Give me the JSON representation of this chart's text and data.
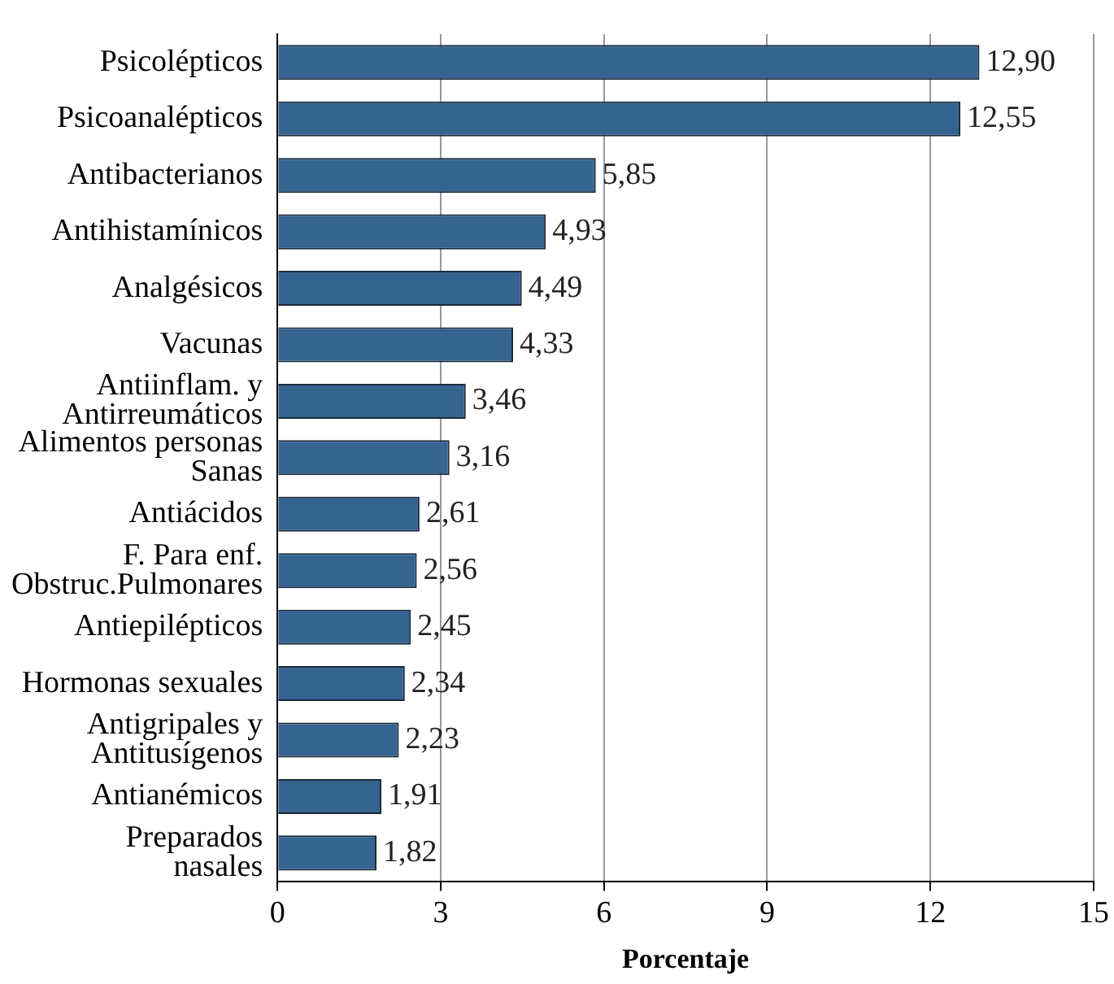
{
  "chart_data": {
    "type": "bar",
    "orientation": "horizontal",
    "xlabel": "Porcentaje",
    "categories": [
      "Psicolépticos",
      "Psicoanalépticos",
      "Antibacterianos",
      "Antihistamínicos",
      "Analgésicos",
      "Vacunas",
      "Antiinflam. y\nAntirreumáticos",
      "Alimentos personas\nSanas",
      "Antiácidos",
      "F. Para enf.\nObstruc.Pulmonares",
      "Antiepilépticos",
      "Hormonas sexuales",
      "Antigripales y\nAntitusígenos",
      "Antianémicos",
      "Preparados\nnasales"
    ],
    "values": [
      12.9,
      12.55,
      5.85,
      4.93,
      4.49,
      4.33,
      3.46,
      3.16,
      2.61,
      2.56,
      2.45,
      2.34,
      2.23,
      1.91,
      1.82
    ],
    "value_labels": [
      "12,90",
      "12,55",
      "5,85",
      "4,93",
      "4,49",
      "4,33",
      "3,46",
      "3,16",
      "2,61",
      "2,56",
      "2,45",
      "2,34",
      "2,23",
      "1,91",
      "1,82"
    ],
    "color": "#356491",
    "xlim": [
      0,
      15
    ],
    "xticks": [
      0,
      3,
      6,
      9,
      12,
      15
    ],
    "grid": "x"
  }
}
